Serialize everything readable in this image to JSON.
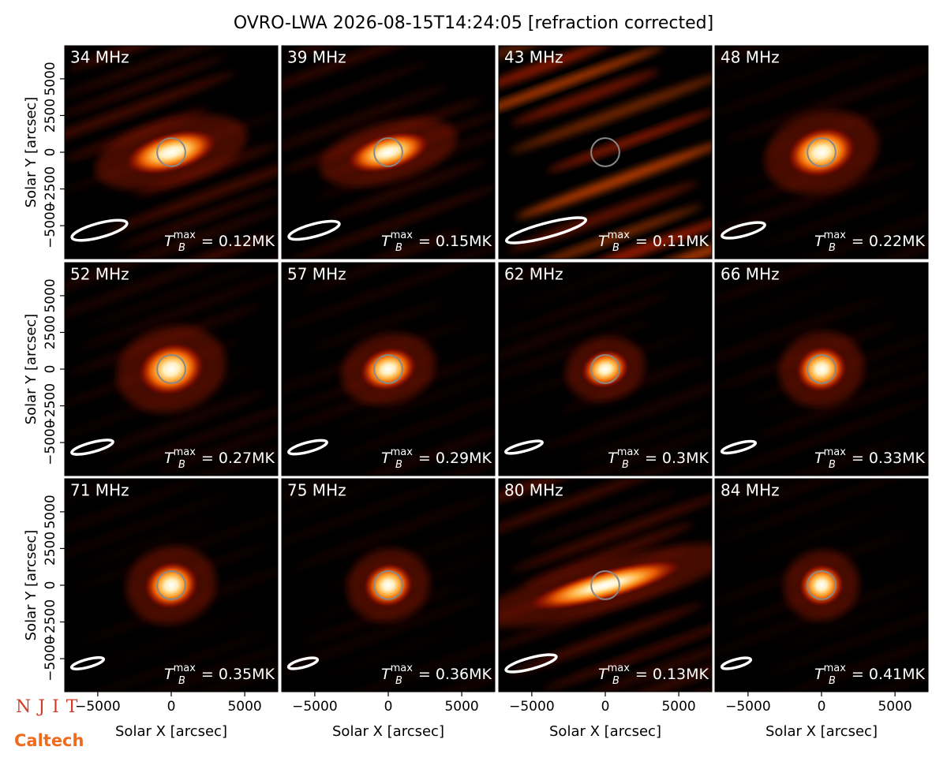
{
  "title": "OVRO-LWA 2026-08-15T14:24:05 [refraction corrected]",
  "logos": [
    "NJIT",
    "Caltech"
  ],
  "chart_data": [
    {
      "type": "image",
      "title": "34 MHz",
      "annotation": {
        "symbol": "T",
        "subscript": "B",
        "superscript": "max",
        "value_text": "= 0.12MK"
      },
      "xlim": [
        -7250,
        7250
      ],
      "ylim": [
        -7250,
        7250
      ],
      "ylabel": "Solar Y [arcsec]",
      "yticks": [
        {
          "value": -5000,
          "label": "−5000"
        },
        {
          "value": -2500,
          "label": "−2500"
        },
        0,
        2500,
        5000
      ]
    },
    {
      "type": "image",
      "title": "39 MHz",
      "annotation": {
        "symbol": "T",
        "subscript": "B",
        "superscript": "max",
        "value_text": "= 0.15MK"
      },
      "xlim": [
        -7250,
        7250
      ],
      "ylim": [
        -7250,
        7250
      ]
    },
    {
      "type": "image",
      "title": "43 MHz",
      "annotation": {
        "symbol": "T",
        "subscript": "B",
        "superscript": "max",
        "value_text": "= 0.11MK"
      },
      "xlim": [
        -7250,
        7250
      ],
      "ylim": [
        -7250,
        7250
      ]
    },
    {
      "type": "image",
      "title": "48 MHz",
      "annotation": {
        "symbol": "T",
        "subscript": "B",
        "superscript": "max",
        "value_text": "= 0.22MK"
      },
      "xlim": [
        -7250,
        7250
      ],
      "ylim": [
        -7250,
        7250
      ]
    },
    {
      "type": "image",
      "title": "52 MHz",
      "annotation": {
        "symbol": "T",
        "subscript": "B",
        "superscript": "max",
        "value_text": "= 0.27MK"
      },
      "xlim": [
        -7250,
        7250
      ],
      "ylim": [
        -7250,
        7250
      ],
      "ylabel": "Solar Y [arcsec]",
      "yticks": [
        {
          "value": -5000,
          "label": "−5000"
        },
        {
          "value": -2500,
          "label": "−2500"
        },
        0,
        2500,
        5000
      ]
    },
    {
      "type": "image",
      "title": "57 MHz",
      "annotation": {
        "symbol": "T",
        "subscript": "B",
        "superscript": "max",
        "value_text": "= 0.29MK"
      },
      "xlim": [
        -7250,
        7250
      ],
      "ylim": [
        -7250,
        7250
      ]
    },
    {
      "type": "image",
      "title": "62 MHz",
      "annotation": {
        "symbol": "T",
        "subscript": "B",
        "superscript": "max",
        "value_text": "= 0.3MK"
      },
      "xlim": [
        -7250,
        7250
      ],
      "ylim": [
        -7250,
        7250
      ]
    },
    {
      "type": "image",
      "title": "66 MHz",
      "annotation": {
        "symbol": "T",
        "subscript": "B",
        "superscript": "max",
        "value_text": "= 0.33MK"
      },
      "xlim": [
        -7250,
        7250
      ],
      "ylim": [
        -7250,
        7250
      ]
    },
    {
      "type": "image",
      "title": "71 MHz",
      "annotation": {
        "symbol": "T",
        "subscript": "B",
        "superscript": "max",
        "value_text": "= 0.35MK"
      },
      "xlim": [
        -7250,
        7250
      ],
      "ylim": [
        -7250,
        7250
      ],
      "ylabel": "Solar Y [arcsec]",
      "yticks": [
        {
          "value": -5000,
          "label": "−5000"
        },
        {
          "value": -2500,
          "label": "−2500"
        },
        0,
        2500,
        5000
      ],
      "xlabel": "Solar X [arcsec]",
      "xticks": [
        {
          "value": -5000,
          "label": "−5000"
        },
        0,
        5000
      ]
    },
    {
      "type": "image",
      "title": "75 MHz",
      "annotation": {
        "symbol": "T",
        "subscript": "B",
        "superscript": "max",
        "value_text": "= 0.36MK"
      },
      "xlim": [
        -7250,
        7250
      ],
      "ylim": [
        -7250,
        7250
      ],
      "xlabel": "Solar X [arcsec]",
      "xticks": [
        {
          "value": -5000,
          "label": "−5000"
        },
        0,
        5000
      ]
    },
    {
      "type": "image",
      "title": "80 MHz",
      "annotation": {
        "symbol": "T",
        "subscript": "B",
        "superscript": "max",
        "value_text": "= 0.13MK"
      },
      "xlim": [
        -7250,
        7250
      ],
      "ylim": [
        -7250,
        7250
      ],
      "xlabel": "Solar X [arcsec]",
      "xticks": [
        {
          "value": -5000,
          "label": "−5000"
        },
        0,
        5000
      ]
    },
    {
      "type": "image",
      "title": "84 MHz",
      "annotation": {
        "symbol": "T",
        "subscript": "B",
        "superscript": "max",
        "value_text": "= 0.41MK"
      },
      "xlim": [
        -7250,
        7250
      ],
      "ylim": [
        -7250,
        7250
      ],
      "xlabel": "Solar X [arcsec]",
      "xticks": [
        {
          "value": -5000,
          "label": "−5000"
        },
        0,
        5000
      ]
    }
  ]
}
